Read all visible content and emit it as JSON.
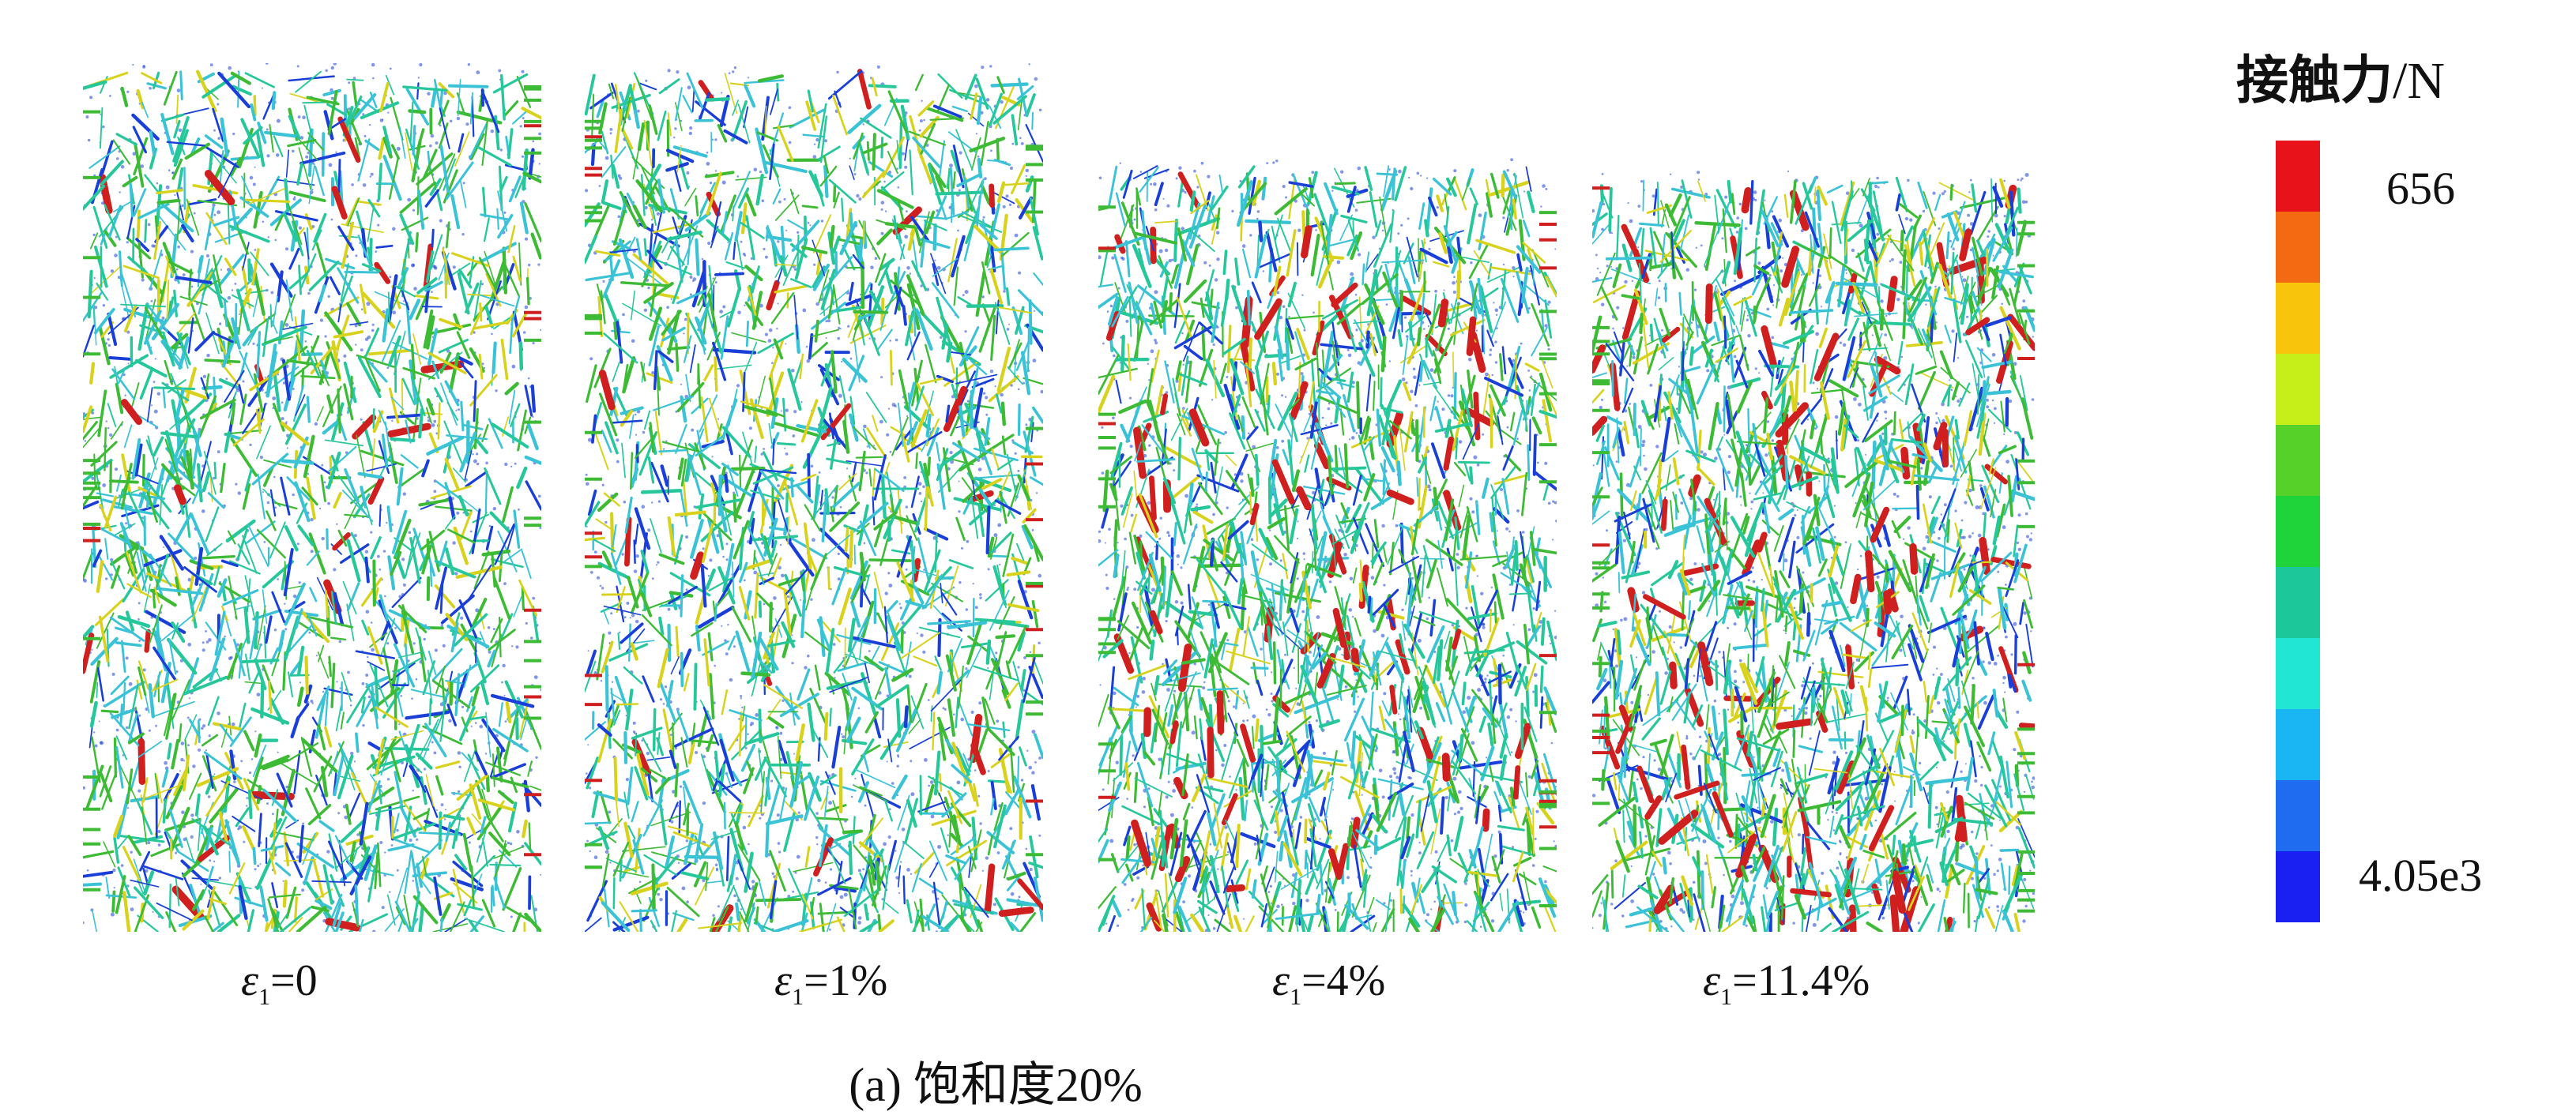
{
  "figure": {
    "caption": "(a) 饱和度20%",
    "panels": [
      {
        "id": "p0",
        "eps_symbol": "ε",
        "eps_sub": "1",
        "value_text": "=0"
      },
      {
        "id": "p1",
        "eps_symbol": "ε",
        "eps_sub": "1",
        "value_text": "=1%"
      },
      {
        "id": "p2",
        "eps_symbol": "ε",
        "eps_sub": "1",
        "value_text": "=4%"
      },
      {
        "id": "p3",
        "eps_symbol": "ε",
        "eps_sub": "1",
        "value_text": "=11.4%"
      }
    ]
  },
  "legend": {
    "title": "接触力",
    "unit": "/N",
    "max_label": "656",
    "min_label": "4.05e3",
    "colors": [
      "#e8121a",
      "#f46a12",
      "#f9c40c",
      "#c6ef1a",
      "#56d12a",
      "#1fd43a",
      "#1cc79a",
      "#22e6d4",
      "#19b6f3",
      "#1f6cf0",
      "#1a1ff2"
    ]
  },
  "network_colors": {
    "weak": "#1a3fd8",
    "light": "#3ac2d6",
    "mid": "#26c79a",
    "green": "#3dbb35",
    "yellow": "#d8d21c",
    "strong": "#cf1f1f"
  }
}
